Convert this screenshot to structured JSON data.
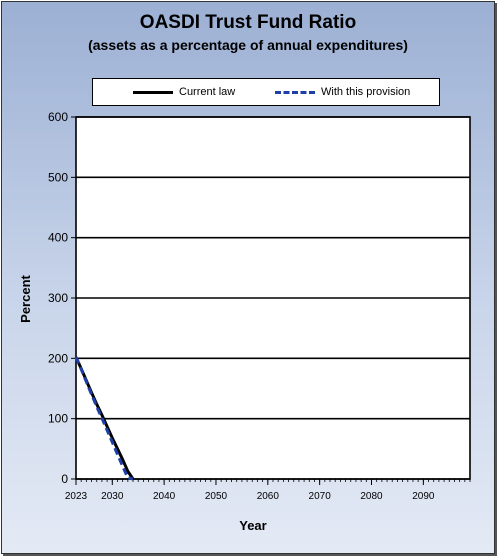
{
  "chart_data": {
    "type": "line",
    "title": "OASDI Trust Fund Ratio",
    "subtitle": "(assets as a percentage of annual expenditures)",
    "xlabel": "Year",
    "ylabel": "Percent",
    "xlim": [
      2023,
      2099
    ],
    "ylim": [
      0,
      600
    ],
    "x_ticks": [
      2023,
      2030,
      2040,
      2050,
      2060,
      2070,
      2080,
      2090
    ],
    "y_ticks": [
      0,
      100,
      200,
      300,
      400,
      500,
      600
    ],
    "grid": "horizontal",
    "legend_position": "top",
    "series": [
      {
        "name": "Current law",
        "color": "#000000",
        "style": "solid",
        "x": [
          2023,
          2024,
          2025,
          2026,
          2027,
          2028,
          2029,
          2030,
          2031,
          2032,
          2033,
          2034
        ],
        "y": [
          202,
          183,
          163,
          143,
          124,
          106,
          87,
          68,
          50,
          32,
          13,
          0
        ]
      },
      {
        "name": "With this provision",
        "color": "#1f3fa8",
        "style": "dashed",
        "x": [
          2023,
          2024,
          2025,
          2026,
          2027,
          2028,
          2029,
          2030,
          2031,
          2032,
          2033,
          2034
        ],
        "y": [
          202,
          182,
          161,
          140,
          120,
          101,
          81,
          61,
          41,
          21,
          2,
          0
        ]
      }
    ]
  }
}
